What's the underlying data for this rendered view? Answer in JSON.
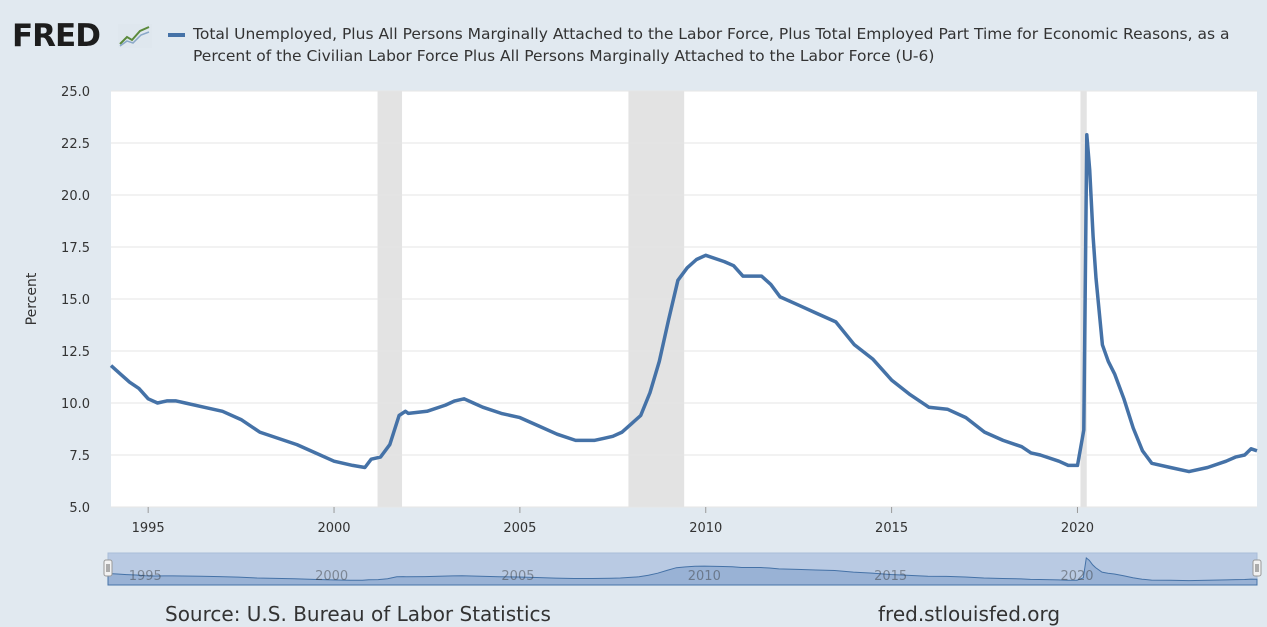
{
  "logo": {
    "text": "FRED"
  },
  "legend": {
    "text": "Total Unemployed, Plus All Persons Marginally Attached to the Labor Force, Plus Total Employed Part Time for Economic Reasons, as a Percent of the Civilian Labor Force Plus All Persons Marginally Attached to the Labor Force (U-6)",
    "color": "#4572a7"
  },
  "chart_data": {
    "type": "line",
    "ylabel": "Percent",
    "ylim": [
      5.0,
      25.0
    ],
    "yticks": [
      "5.0",
      "7.5",
      "10.0",
      "12.5",
      "15.0",
      "17.5",
      "20.0",
      "22.5",
      "25.0"
    ],
    "xlim": [
      1994.0,
      2024.83
    ],
    "xticks": [
      "1995",
      "2000",
      "2005",
      "2010",
      "2015",
      "2020"
    ],
    "grid": true,
    "recessions": [
      [
        2001.17,
        2001.83
      ],
      [
        2007.92,
        2009.42
      ],
      [
        2020.08,
        2020.25
      ]
    ],
    "series": [
      {
        "color": "#4572a7",
        "x": [
          1994.0,
          1994.25,
          1994.5,
          1994.75,
          1995.0,
          1995.25,
          1995.5,
          1995.75,
          1996.0,
          1996.5,
          1997.0,
          1997.5,
          1998.0,
          1998.5,
          1999.0,
          1999.5,
          2000.0,
          2000.5,
          2000.83,
          2001.0,
          2001.25,
          2001.5,
          2001.75,
          2001.92,
          2002.0,
          2002.5,
          2003.0,
          2003.25,
          2003.5,
          2003.75,
          2004.0,
          2004.5,
          2005.0,
          2005.5,
          2006.0,
          2006.5,
          2007.0,
          2007.25,
          2007.5,
          2007.75,
          2008.0,
          2008.25,
          2008.5,
          2008.75,
          2009.0,
          2009.25,
          2009.5,
          2009.75,
          2010.0,
          2010.5,
          2010.75,
          2011.0,
          2011.5,
          2011.75,
          2012.0,
          2012.5,
          2013.0,
          2013.5,
          2014.0,
          2014.5,
          2015.0,
          2015.5,
          2016.0,
          2016.5,
          2017.0,
          2017.5,
          2018.0,
          2018.5,
          2018.75,
          2019.0,
          2019.5,
          2019.75,
          2020.0,
          2020.17,
          2020.25,
          2020.33,
          2020.42,
          2020.5,
          2020.67,
          2020.83,
          2021.0,
          2021.25,
          2021.5,
          2021.75,
          2022.0,
          2022.5,
          2023.0,
          2023.5,
          2024.0,
          2024.25,
          2024.5,
          2024.67,
          2024.83
        ],
        "y": [
          11.8,
          11.4,
          11.0,
          10.7,
          10.2,
          10.0,
          10.1,
          10.1,
          10.0,
          9.8,
          9.6,
          9.2,
          8.6,
          8.3,
          8.0,
          7.6,
          7.2,
          7.0,
          6.9,
          7.3,
          7.4,
          8.0,
          9.4,
          9.6,
          9.5,
          9.6,
          9.9,
          10.1,
          10.2,
          10.0,
          9.8,
          9.5,
          9.3,
          8.9,
          8.5,
          8.2,
          8.2,
          8.3,
          8.4,
          8.6,
          9.0,
          9.4,
          10.5,
          12.0,
          14.0,
          15.9,
          16.5,
          16.9,
          17.1,
          16.8,
          16.6,
          16.1,
          16.1,
          15.7,
          15.1,
          14.7,
          14.3,
          13.9,
          12.8,
          12.1,
          11.1,
          10.4,
          9.8,
          9.7,
          9.3,
          8.6,
          8.2,
          7.9,
          7.6,
          7.5,
          7.2,
          7.0,
          7.0,
          8.7,
          22.9,
          21.2,
          18.0,
          16.0,
          12.8,
          12.0,
          11.4,
          10.2,
          8.8,
          7.7,
          7.1,
          6.9,
          6.7,
          6.9,
          7.2,
          7.4,
          7.5,
          7.8,
          7.7
        ]
      }
    ]
  },
  "footer": {
    "source": "Source: U.S. Bureau of Labor Statistics",
    "url": "fred.stlouisfed.org"
  }
}
